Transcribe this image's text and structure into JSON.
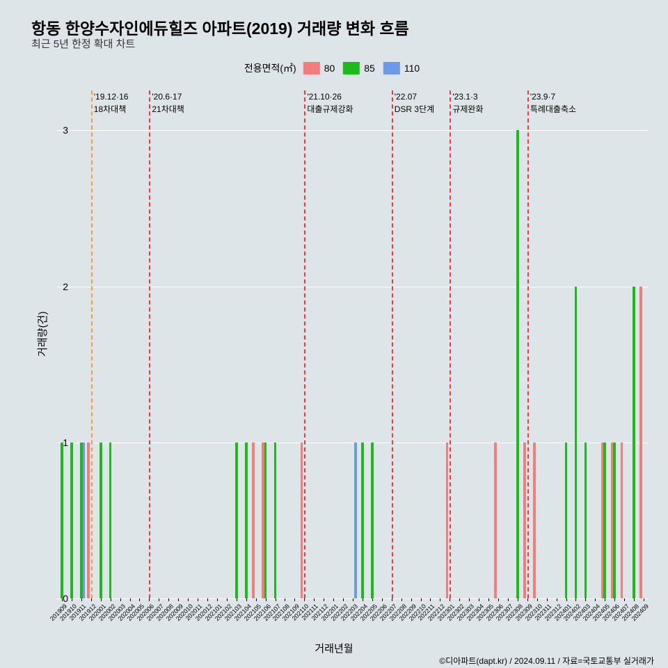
{
  "title": "항동 한양수자인에듀힐즈 아파트(2019) 거래량 변화 흐름",
  "subtitle": "최근 5년 한정 확대 차트",
  "legend": {
    "title": "전용면적(㎡)",
    "items": [
      {
        "label": "80",
        "color": "#f07f7b"
      },
      {
        "label": "85",
        "color": "#1db91d"
      },
      {
        "label": "110",
        "color": "#6d99e6"
      }
    ]
  },
  "credit": "©디아파트(dapt.kr) / 2024.09.11 / 자료=국토교통부 실거래가",
  "chart": {
    "type": "bar",
    "background_color": "#dde5e8",
    "grid_color": "#ffffff",
    "ylabel": "거래량(건)",
    "xlabel": "거래년월",
    "ylim": [
      0,
      3.3
    ],
    "yticks": [
      0,
      1,
      2,
      3
    ],
    "categories": [
      "201909",
      "201910",
      "201911",
      "201912",
      "202001",
      "202002",
      "202003",
      "202004",
      "202005",
      "202006",
      "202007",
      "202008",
      "202009",
      "202010",
      "202011",
      "202012",
      "202101",
      "202102",
      "202103",
      "202104",
      "202105",
      "202106",
      "202107",
      "202108",
      "202109",
      "202110",
      "202111",
      "202112",
      "202201",
      "202202",
      "202203",
      "202204",
      "202205",
      "202206",
      "202207",
      "202208",
      "202209",
      "202210",
      "202211",
      "202212",
      "202301",
      "202302",
      "202303",
      "202304",
      "202305",
      "202306",
      "202307",
      "202308",
      "202309",
      "202310",
      "202311",
      "202312",
      "202401",
      "202402",
      "202403",
      "202404",
      "202405",
      "202406",
      "202407",
      "202408",
      "202409"
    ],
    "series": [
      {
        "name": "80",
        "color": "#f07f7b",
        "data": [
          0,
          0,
          0,
          1,
          0,
          0,
          0,
          0,
          0,
          0,
          0,
          0,
          0,
          0,
          0,
          0,
          0,
          0,
          0,
          0,
          1,
          1,
          0,
          0,
          0,
          1,
          0,
          0,
          0,
          0,
          0,
          0,
          0,
          0,
          0,
          0,
          0,
          0,
          0,
          0,
          1,
          0,
          0,
          0,
          0,
          1,
          0,
          0,
          1,
          1,
          0,
          0,
          0,
          0,
          0,
          0,
          1,
          1,
          1,
          0,
          2
        ]
      },
      {
        "name": "85",
        "color": "#1db91d",
        "data": [
          1,
          1,
          1,
          0,
          1,
          1,
          0,
          0,
          0,
          0,
          0,
          0,
          0,
          0,
          0,
          0,
          0,
          0,
          1,
          1,
          0,
          1,
          1,
          0,
          0,
          0,
          0,
          0,
          0,
          0,
          0,
          1,
          1,
          0,
          0,
          0,
          0,
          0,
          0,
          0,
          0,
          0,
          0,
          0,
          0,
          0,
          0,
          3,
          0,
          0,
          0,
          0,
          1,
          2,
          1,
          0,
          1,
          1,
          0,
          2,
          0
        ]
      },
      {
        "name": "110",
        "color": "#6d99e6",
        "data": [
          0,
          0,
          1,
          0,
          0,
          0,
          0,
          0,
          0,
          0,
          0,
          0,
          0,
          0,
          0,
          0,
          0,
          0,
          0,
          0,
          0,
          0,
          0,
          0,
          0,
          0,
          0,
          0,
          0,
          0,
          1,
          0,
          0,
          0,
          0,
          0,
          0,
          0,
          0,
          0,
          0,
          0,
          0,
          0,
          0,
          0,
          0,
          0,
          0,
          0,
          0,
          0,
          0,
          0,
          0,
          0,
          0,
          0,
          0,
          0,
          0
        ]
      }
    ],
    "vlines": [
      {
        "x": "201912",
        "color": "#ff9933",
        "label1": "'19.12·16",
        "label2": "18차대책"
      },
      {
        "x": "202006",
        "color": "#ff3333",
        "label1": "'20.6·17",
        "label2": "21차대책"
      },
      {
        "x": "202110",
        "color": "#ff3333",
        "label1": "'21.10·26",
        "label2": "대출규제강화"
      },
      {
        "x": "202207",
        "color": "#ff3333",
        "label1": "'22.07",
        "label2": "DSR 3단계"
      },
      {
        "x": "202301",
        "color": "#ff3333",
        "label1": "'23.1·3",
        "label2": "규제완화"
      },
      {
        "x": "202309",
        "color": "#ff3333",
        "label1": "'23.9·7",
        "label2": "특례대출축소"
      }
    ],
    "bar_group_width": 0.8,
    "label_fontsize": 15,
    "tick_fontsize": 14,
    "title_fontsize": 23
  }
}
